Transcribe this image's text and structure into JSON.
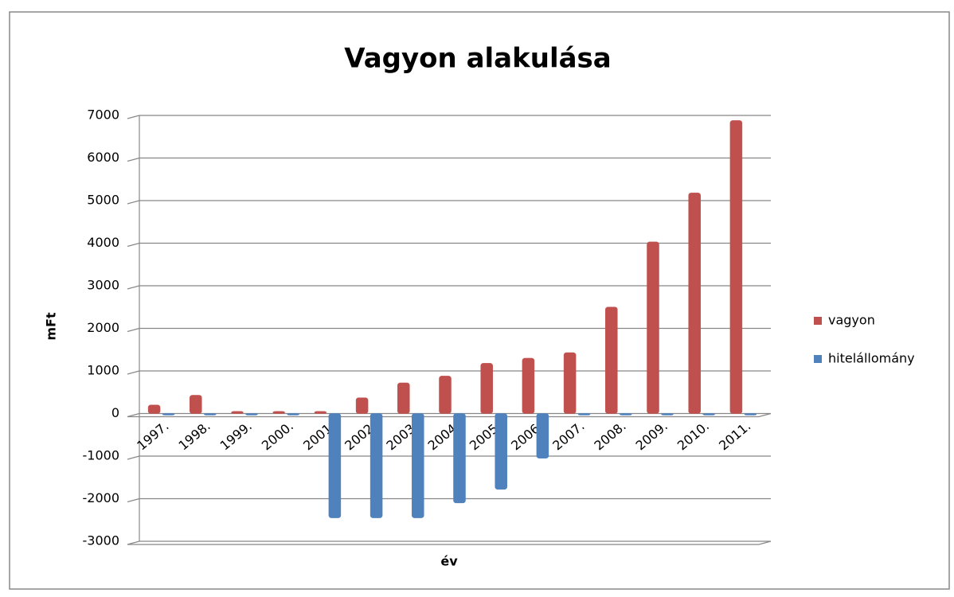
{
  "chart_data": {
    "type": "bar",
    "title": "Vagyon alakulása",
    "x_label": "év",
    "y_label": "mFt",
    "categories": [
      "1997.",
      "1998.",
      "1999.",
      "2000.",
      "2001.",
      "2002.",
      "2003.",
      "2004.",
      "2005.",
      "2006.",
      "2007.",
      "2008.",
      "2009.",
      "2010.",
      "2011."
    ],
    "series": [
      {
        "name": "vagyon",
        "color": "#c0504d",
        "values": [
          200,
          430,
          50,
          50,
          50,
          370,
          720,
          880,
          1180,
          1300,
          1430,
          2500,
          4030,
          5180,
          6880
        ]
      },
      {
        "name": "hitelállomány",
        "color": "#4f81bd",
        "values": [
          0,
          0,
          0,
          0,
          -2450,
          -2450,
          -2450,
          -2100,
          -1780,
          -1050,
          0,
          0,
          0,
          0,
          0
        ]
      }
    ],
    "ylim": [
      -3000,
      7000
    ],
    "yticks": [
      -3000,
      -2000,
      -1000,
      0,
      1000,
      2000,
      3000,
      4000,
      5000,
      6000,
      7000
    ],
    "grid": true,
    "legend": "right"
  }
}
